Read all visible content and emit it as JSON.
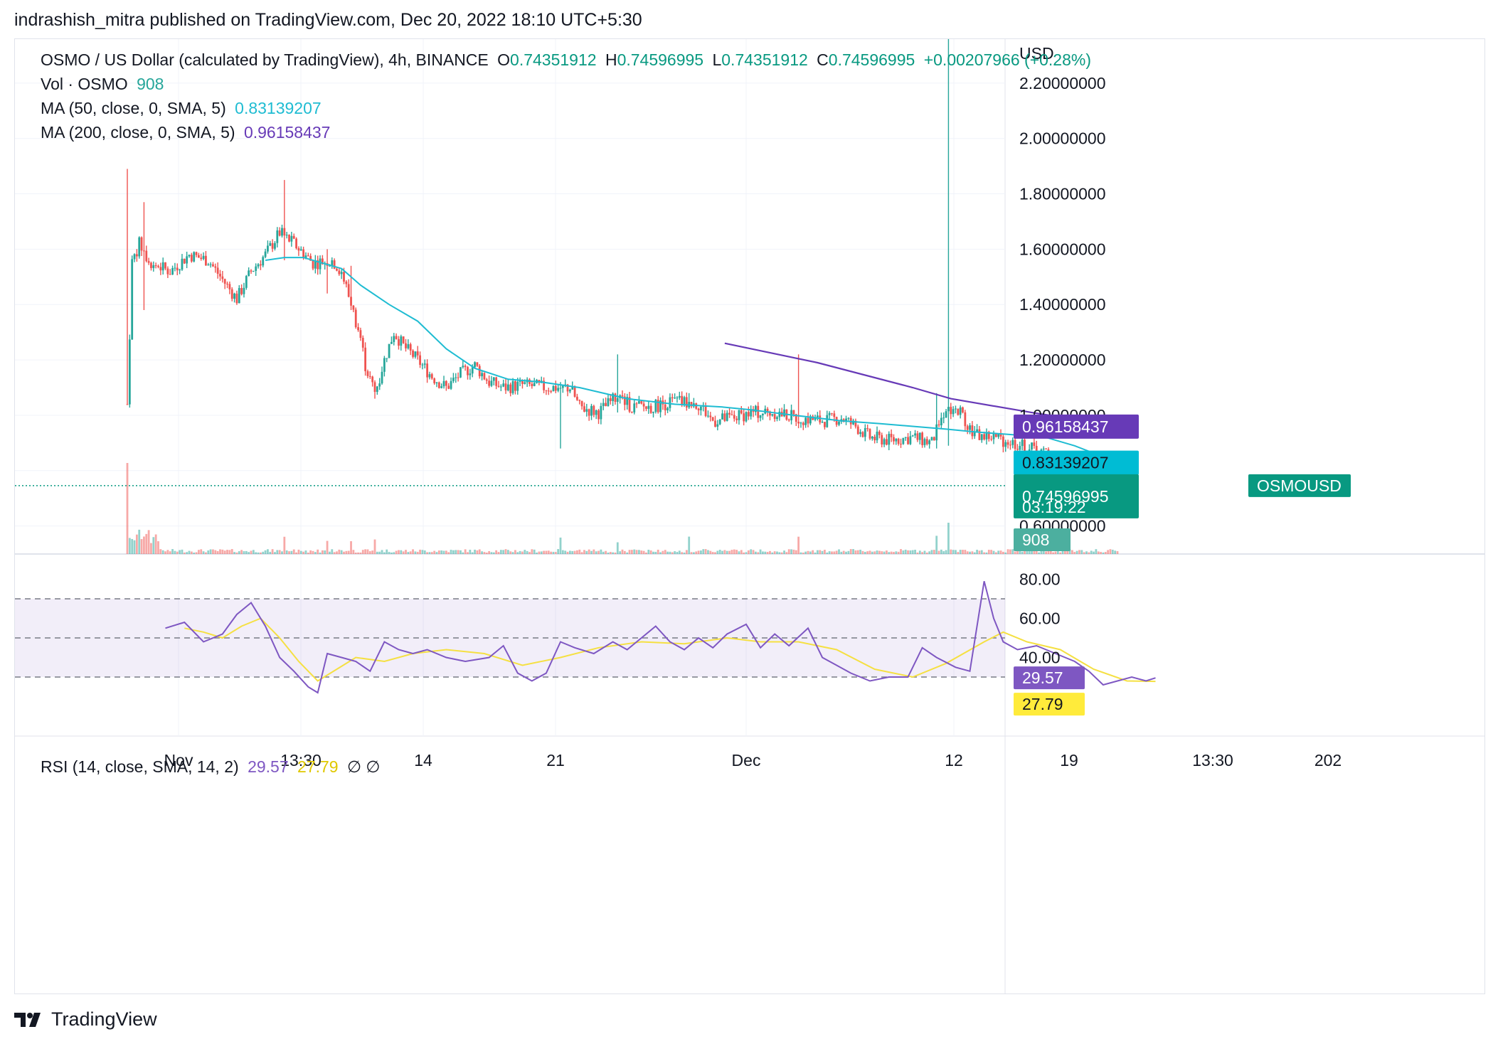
{
  "publisher": "indrashish_mitra published on TradingView.com, Dec 20, 2022 18:10 UTC+5:30",
  "legend": {
    "symbol": "OSMO / US Dollar (calculated by TradingView), 4h, BINANCE",
    "o_label": "O",
    "o_value": "0.74351912",
    "h_label": "H",
    "h_value": "0.74596995",
    "l_label": "L",
    "l_value": "0.74351912",
    "c_label": "C",
    "c_value": "0.74596995",
    "change": "+0.00207966 (+0.28%)",
    "vol_label": "Vol · OSMO",
    "vol_value": "908",
    "ma50_label": "MA (50, close, 0, SMA, 5)",
    "ma50_value": "0.83139207",
    "ma200_label": "MA (200, close, 0, SMA, 5)",
    "ma200_value": "0.96158437",
    "rsi_label": "RSI (14, close, SMA, 14, 2)",
    "rsi_value": "29.57",
    "rsi_sma_value": "27.79",
    "rsi_extra": "∅ ∅"
  },
  "axis": {
    "currency": "USD",
    "price_ticks": [
      "2.20000000",
      "2.00000000",
      "1.80000000",
      "1.60000000",
      "1.40000000",
      "1.20000000",
      "1.00000000",
      "0.80000000",
      "0.60000000"
    ],
    "rsi_ticks": [
      "80.00",
      "60.00",
      "40.00"
    ],
    "time_ticks": [
      "Nov",
      "13:30",
      "14",
      "21",
      "Dec",
      "12",
      "19",
      "13:30",
      "202"
    ]
  },
  "badges": {
    "ma200": "0.96158437",
    "ma50": "0.83139207",
    "symbol": "OSMOUSD",
    "price": "0.74596995",
    "countdown": "03:19:22",
    "volume": "908",
    "rsi": "29.57",
    "rsi_sma": "27.79"
  },
  "colors": {
    "up": "#26a69a",
    "down": "#ef5350",
    "ma50": "#1fbcd2",
    "ma200": "#673ab7",
    "rsi": "#7e57c2",
    "rsi_sma": "#f5e042",
    "price_badge": "#089981",
    "grid": "#f0f3fa"
  },
  "footer": {
    "brand": "TradingView"
  },
  "chart_data": {
    "type": "candlestick",
    "interval": "4h",
    "title": "OSMO / US Dollar (calculated by TradingView), 4h, BINANCE",
    "ylim": [
      0.54,
      2.4
    ],
    "price_path": [
      [
        0,
        1.04
      ],
      [
        2,
        1.55
      ],
      [
        5,
        1.62
      ],
      [
        10,
        1.55
      ],
      [
        18,
        1.52
      ],
      [
        26,
        1.58
      ],
      [
        34,
        1.56
      ],
      [
        40,
        1.49
      ],
      [
        46,
        1.42
      ],
      [
        52,
        1.52
      ],
      [
        58,
        1.58
      ],
      [
        64,
        1.66
      ],
      [
        70,
        1.62
      ],
      [
        78,
        1.55
      ],
      [
        86,
        1.56
      ],
      [
        90,
        1.52
      ],
      [
        94,
        1.4
      ],
      [
        98,
        1.28
      ],
      [
        100,
        1.18
      ],
      [
        104,
        1.08
      ],
      [
        108,
        1.2
      ],
      [
        112,
        1.3
      ],
      [
        116,
        1.25
      ],
      [
        122,
        1.2
      ],
      [
        128,
        1.14
      ],
      [
        134,
        1.1
      ],
      [
        140,
        1.15
      ],
      [
        146,
        1.18
      ],
      [
        152,
        1.12
      ],
      [
        158,
        1.1
      ],
      [
        166,
        1.11
      ],
      [
        176,
        1.1
      ],
      [
        186,
        1.1
      ],
      [
        190,
        1.03
      ],
      [
        198,
        1.01
      ],
      [
        206,
        1.07
      ],
      [
        212,
        1.03
      ],
      [
        220,
        1.03
      ],
      [
        230,
        1.05
      ],
      [
        240,
        1.04
      ],
      [
        246,
        0.98
      ],
      [
        254,
        0.99
      ],
      [
        262,
        1.01
      ],
      [
        272,
        1.01
      ],
      [
        282,
        0.99
      ],
      [
        292,
        0.98
      ],
      [
        300,
        0.99
      ],
      [
        306,
        0.96
      ],
      [
        312,
        0.92
      ],
      [
        320,
        0.91
      ],
      [
        330,
        0.92
      ],
      [
        338,
        0.9
      ],
      [
        344,
        1.03
      ],
      [
        350,
        1.01
      ],
      [
        356,
        0.93
      ],
      [
        364,
        0.92
      ],
      [
        372,
        0.9
      ],
      [
        380,
        0.88
      ],
      [
        386,
        0.86
      ],
      [
        390,
        0.79
      ],
      [
        394,
        0.77
      ],
      [
        400,
        0.77
      ],
      [
        406,
        0.76
      ],
      [
        412,
        0.74
      ],
      [
        416,
        0.75
      ]
    ],
    "spikes": [
      {
        "i": 0,
        "high": 1.89,
        "low": 1.04
      },
      {
        "i": 7,
        "high": 1.77,
        "low": 1.38
      },
      {
        "i": 66,
        "high": 1.85,
        "low": 1.56
      },
      {
        "i": 84,
        "high": 1.6,
        "low": 1.44
      },
      {
        "i": 94,
        "high": 1.54,
        "low": 1.38
      },
      {
        "i": 104,
        "high": 1.09,
        "low": 1.06
      },
      {
        "i": 182,
        "high": 1.12,
        "low": 0.88
      },
      {
        "i": 206,
        "high": 1.22,
        "low": 1.01
      },
      {
        "i": 236,
        "high": 1.08,
        "low": 1.03
      },
      {
        "i": 282,
        "high": 1.22,
        "low": 0.98
      },
      {
        "i": 345,
        "high": 2.4,
        "low": 0.89
      },
      {
        "i": 340,
        "high": 1.08,
        "low": 0.88
      }
    ],
    "ma50_path": [
      [
        58,
        1.56
      ],
      [
        66,
        1.57
      ],
      [
        74,
        1.57
      ],
      [
        82,
        1.55
      ],
      [
        90,
        1.53
      ],
      [
        98,
        1.47
      ],
      [
        110,
        1.4
      ],
      [
        122,
        1.34
      ],
      [
        134,
        1.24
      ],
      [
        146,
        1.17
      ],
      [
        160,
        1.13
      ],
      [
        174,
        1.12
      ],
      [
        190,
        1.1
      ],
      [
        210,
        1.06
      ],
      [
        230,
        1.04
      ],
      [
        250,
        1.03
      ],
      [
        262,
        1.02
      ],
      [
        280,
        1.0
      ],
      [
        300,
        0.98
      ],
      [
        316,
        0.97
      ],
      [
        330,
        0.96
      ],
      [
        344,
        0.95
      ],
      [
        356,
        0.94
      ],
      [
        372,
        0.93
      ],
      [
        386,
        0.92
      ],
      [
        398,
        0.89
      ],
      [
        416,
        0.83
      ]
    ],
    "ma200_path": [
      [
        251,
        1.26
      ],
      [
        290,
        1.19
      ],
      [
        330,
        1.1
      ],
      [
        346,
        1.06
      ],
      [
        380,
        1.01
      ],
      [
        416,
        0.962
      ]
    ],
    "current_price": 0.74596995,
    "rsi_path": [
      [
        0,
        55
      ],
      [
        8,
        58
      ],
      [
        16,
        48
      ],
      [
        24,
        52
      ],
      [
        30,
        62
      ],
      [
        36,
        68
      ],
      [
        42,
        56
      ],
      [
        48,
        40
      ],
      [
        54,
        33
      ],
      [
        60,
        25
      ],
      [
        64,
        22
      ],
      [
        68,
        42
      ],
      [
        74,
        40
      ],
      [
        80,
        38
      ],
      [
        86,
        33
      ],
      [
        92,
        48
      ],
      [
        98,
        44
      ],
      [
        104,
        42
      ],
      [
        110,
        44
      ],
      [
        118,
        40
      ],
      [
        126,
        38
      ],
      [
        136,
        40
      ],
      [
        142,
        46
      ],
      [
        148,
        32
      ],
      [
        154,
        28
      ],
      [
        160,
        32
      ],
      [
        166,
        48
      ],
      [
        172,
        45
      ],
      [
        180,
        42
      ],
      [
        188,
        48
      ],
      [
        194,
        44
      ],
      [
        200,
        50
      ],
      [
        206,
        56
      ],
      [
        212,
        48
      ],
      [
        218,
        44
      ],
      [
        224,
        50
      ],
      [
        230,
        45
      ],
      [
        236,
        52
      ],
      [
        244,
        57
      ],
      [
        250,
        45
      ],
      [
        256,
        52
      ],
      [
        262,
        46
      ],
      [
        270,
        55
      ],
      [
        276,
        40
      ],
      [
        282,
        36
      ],
      [
        288,
        32
      ],
      [
        296,
        28
      ],
      [
        304,
        30
      ],
      [
        312,
        30
      ],
      [
        318,
        45
      ],
      [
        324,
        40
      ],
      [
        332,
        35
      ],
      [
        338,
        33
      ],
      [
        344,
        79
      ],
      [
        348,
        60
      ],
      [
        352,
        48
      ],
      [
        358,
        44
      ],
      [
        366,
        46
      ],
      [
        374,
        42
      ],
      [
        382,
        38
      ],
      [
        388,
        33
      ],
      [
        394,
        26
      ],
      [
        400,
        28
      ],
      [
        406,
        30
      ],
      [
        412,
        28
      ],
      [
        416,
        29.57
      ]
    ],
    "rsi_sma_path": [
      [
        8,
        55
      ],
      [
        16,
        53
      ],
      [
        24,
        50
      ],
      [
        32,
        56
      ],
      [
        40,
        60
      ],
      [
        48,
        50
      ],
      [
        56,
        38
      ],
      [
        64,
        28
      ],
      [
        72,
        34
      ],
      [
        80,
        40
      ],
      [
        92,
        38
      ],
      [
        104,
        42
      ],
      [
        118,
        44
      ],
      [
        134,
        42
      ],
      [
        150,
        36
      ],
      [
        166,
        40
      ],
      [
        182,
        45
      ],
      [
        200,
        48
      ],
      [
        218,
        47
      ],
      [
        236,
        50
      ],
      [
        250,
        48
      ],
      [
        266,
        48
      ],
      [
        282,
        44
      ],
      [
        298,
        34
      ],
      [
        314,
        30
      ],
      [
        328,
        37
      ],
      [
        344,
        48
      ],
      [
        352,
        53
      ],
      [
        362,
        48
      ],
      [
        376,
        44
      ],
      [
        390,
        34
      ],
      [
        404,
        28
      ],
      [
        416,
        27.79
      ]
    ],
    "rsi_ylim": [
      10,
      90
    ]
  }
}
